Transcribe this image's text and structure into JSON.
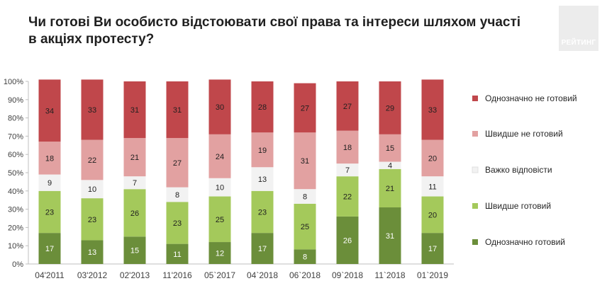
{
  "title": "Чи готові Ви особисто відстоювати свої права та інтереси шляхом участі в акціях протесту?",
  "logo": {
    "text": "РЕЙТИНГ"
  },
  "chart_data": {
    "type": "bar",
    "stacked": true,
    "categories": [
      "04'2011",
      "03'2012",
      "02'2013",
      "11'2016",
      "05`2017",
      "04`2018",
      "06`2018",
      "09`2018",
      "11`2018",
      "01`2019"
    ],
    "y_ticks": [
      "0%",
      "10%",
      "20%",
      "30%",
      "40%",
      "50%",
      "60%",
      "70%",
      "80%",
      "90%",
      "100%"
    ],
    "ylim": [
      0,
      100
    ],
    "legend_position": "right",
    "series": [
      {
        "name": "Однозначно готовий",
        "color": "#6b8e3a",
        "label_color": "#ffffff",
        "values": [
          17,
          13,
          15,
          11,
          12,
          17,
          8,
          26,
          31,
          17
        ]
      },
      {
        "name": "Швидше готовий",
        "color": "#a4c95b",
        "label_color": "#1f1f1f",
        "values": [
          23,
          23,
          26,
          23,
          25,
          23,
          25,
          22,
          21,
          20
        ]
      },
      {
        "name": "Важко відповісти",
        "color": "#f2f2f2",
        "label_color": "#1f1f1f",
        "values": [
          9,
          10,
          7,
          8,
          10,
          13,
          8,
          7,
          4,
          11
        ]
      },
      {
        "name": "Швидше не готовий",
        "color": "#e2a1a1",
        "label_color": "#1f1f1f",
        "values": [
          18,
          22,
          21,
          27,
          24,
          19,
          31,
          18,
          15,
          20
        ]
      },
      {
        "name": "Однозначно не готовий",
        "color": "#c0474b",
        "label_color": "#1f1f1f",
        "values": [
          34,
          33,
          31,
          31,
          30,
          28,
          27,
          27,
          29,
          33
        ]
      }
    ]
  }
}
